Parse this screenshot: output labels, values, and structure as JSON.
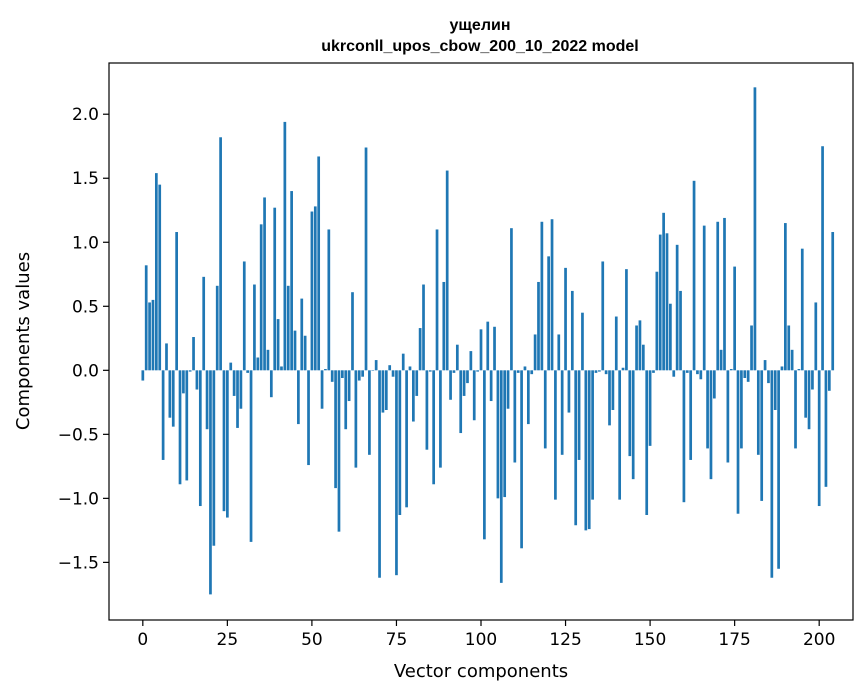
{
  "chart_data": {
    "type": "bar",
    "title_line1": "ущелин",
    "title_line2": "ukrconll_upos_cbow_200_10_2022 model",
    "xlabel": "Vector components",
    "ylabel": "Components values",
    "xlim": [
      -10,
      210
    ],
    "ylim": [
      -1.95,
      2.4
    ],
    "x_ticks": [
      "0",
      "25",
      "50",
      "75",
      "100",
      "125",
      "150",
      "175",
      "200"
    ],
    "y_ticks": [
      "−1.5",
      "−1.0",
      "−0.5",
      "0.0",
      "0.5",
      "1.0",
      "1.5",
      "2.0"
    ],
    "color": "#1f77b4",
    "grid": false,
    "values": [
      -0.08,
      0.82,
      0.53,
      0.55,
      1.54,
      1.45,
      -0.7,
      0.21,
      -0.37,
      -0.44,
      1.08,
      -0.89,
      -0.18,
      -0.86,
      -0.01,
      0.26,
      -0.15,
      -1.06,
      0.73,
      -0.46,
      -1.75,
      -1.37,
      0.66,
      1.82,
      -1.1,
      -1.15,
      0.06,
      -0.2,
      -0.45,
      -0.3,
      0.85,
      -0.02,
      -1.34,
      0.67,
      0.1,
      1.14,
      1.35,
      0.16,
      -0.21,
      1.27,
      0.4,
      0.03,
      1.94,
      0.66,
      1.4,
      0.31,
      -0.42,
      0.56,
      0.27,
      -0.74,
      1.24,
      1.28,
      1.67,
      -0.3,
      0.01,
      1.1,
      -0.09,
      -0.92,
      -1.26,
      -0.06,
      -0.46,
      -0.24,
      0.61,
      -0.76,
      -0.08,
      -0.05,
      1.74,
      -0.66,
      0.0,
      0.08,
      -1.62,
      -0.33,
      -0.31,
      0.04,
      -0.05,
      -1.6,
      -1.13,
      0.13,
      -1.07,
      0.03,
      -0.4,
      -0.2,
      0.33,
      0.67,
      -0.62,
      -0.01,
      -0.89,
      1.1,
      -0.76,
      0.69,
      1.56,
      -0.23,
      -0.02,
      0.2,
      -0.49,
      -0.2,
      -0.1,
      0.15,
      -0.39,
      -0.01,
      0.32,
      -1.32,
      0.38,
      -0.24,
      0.34,
      -1.0,
      -1.66,
      -0.99,
      -0.3,
      1.11,
      -0.72,
      -0.02,
      -1.39,
      0.03,
      -0.42,
      -0.03,
      0.28,
      0.69,
      1.16,
      -0.61,
      0.89,
      1.18,
      -1.01,
      0.28,
      -0.66,
      0.8,
      -0.33,
      0.62,
      -1.21,
      -0.7,
      0.45,
      -1.25,
      -1.24,
      -1.01,
      -0.02,
      -0.01,
      0.85,
      -0.03,
      -0.43,
      -0.31,
      0.42,
      -1.01,
      0.02,
      0.79,
      -0.67,
      -0.85,
      0.35,
      0.39,
      0.2,
      -1.13,
      -0.59,
      -0.02,
      0.77,
      1.06,
      1.23,
      1.07,
      0.52,
      -0.05,
      0.98,
      0.62,
      -1.03,
      -0.02,
      -0.7,
      1.48,
      -0.03,
      -0.07,
      1.13,
      -0.61,
      -0.85,
      -0.22,
      1.16,
      0.16,
      1.19,
      -0.72,
      0.01,
      0.81,
      -1.12,
      -0.61,
      -0.06,
      -0.09,
      0.35,
      2.21,
      -0.66,
      -1.02,
      0.08,
      -0.1,
      -1.62,
      -0.31,
      -1.55,
      0.03,
      1.15,
      0.35,
      0.16,
      -0.61,
      0.01,
      0.95,
      -0.37,
      -0.46,
      -0.15,
      0.53,
      -1.06,
      1.75,
      -0.91,
      -0.16,
      1.08
    ]
  }
}
